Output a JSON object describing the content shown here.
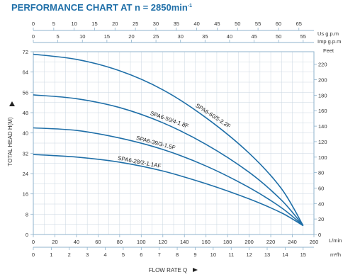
{
  "title": {
    "main": "PERFORMANCE CHART AT n = 2850min",
    "sup": "-1"
  },
  "units": {
    "us_gpm": "Us g.p.m",
    "imp_gpm": "Imp g.p.m",
    "feet": "Feet",
    "l_min": "L/min",
    "m3h": "m³/h"
  },
  "axis_titles": {
    "y": "TOTAL HEAD H(M)",
    "x": "FLOW RATE Q"
  },
  "colors": {
    "curve": "#1f6fa8",
    "title": "#1f6fa8",
    "grid": "#c9d6e0",
    "frame": "#8fb3cc"
  },
  "chart_data": {
    "type": "line",
    "title": "PERFORMANCE CHART AT n = 2850min⁻¹",
    "xlabel": "FLOW RATE Q",
    "ylabel": "TOTAL HEAD H(M)",
    "xlim": [
      0,
      260
    ],
    "ylim": [
      0,
      72
    ],
    "grid": true,
    "x_unit": "L/min",
    "y_unit": "m",
    "ticks": {
      "us_gpm": [
        "0",
        "5",
        "10",
        "15",
        "20",
        "25",
        "30",
        "35",
        "40",
        "45",
        "50",
        "55",
        "60",
        "65"
      ],
      "imp_gpm": [
        "0",
        "5",
        "10",
        "15",
        "20",
        "25",
        "30",
        "35",
        "40",
        "45",
        "50",
        "55"
      ],
      "head_m": [
        "0",
        "8",
        "16",
        "24",
        "32",
        "40",
        "48",
        "56",
        "64",
        "72"
      ],
      "feet": [
        "0",
        "20",
        "40",
        "60",
        "80",
        "100",
        "120",
        "140",
        "160",
        "180",
        "200",
        "220"
      ],
      "l_min": [
        "0",
        "20",
        "40",
        "60",
        "80",
        "100",
        "120",
        "140",
        "160",
        "180",
        "200",
        "220",
        "240",
        "260"
      ],
      "m3h": [
        "0",
        "1",
        "2",
        "3",
        "4",
        "5",
        "6",
        "7",
        "8",
        "9",
        "10",
        "11",
        "12",
        "13",
        "14",
        "15"
      ]
    },
    "series": [
      {
        "name": "SPA6-60/5-2.2F",
        "x": [
          0,
          40,
          80,
          120,
          160,
          200,
          230,
          250
        ],
        "y": [
          71,
          69,
          64.5,
          57,
          46,
          32,
          18,
          3.5
        ]
      },
      {
        "name": "SPA6-50/4-1.8F",
        "x": [
          0,
          40,
          80,
          120,
          160,
          200,
          230,
          250
        ],
        "y": [
          55,
          53.5,
          50,
          44,
          35.5,
          24.5,
          13.5,
          3.5
        ]
      },
      {
        "name": "SPA6-39/3-1.5F",
        "x": [
          0,
          40,
          80,
          120,
          160,
          200,
          230,
          250
        ],
        "y": [
          42,
          41,
          38,
          33.5,
          27,
          18.5,
          10.5,
          3.5
        ]
      },
      {
        "name": "SPA6-28/2-1.1AF",
        "x": [
          0,
          40,
          80,
          120,
          160,
          200,
          230,
          250
        ],
        "y": [
          31.5,
          30.5,
          28.5,
          25,
          20,
          14,
          8.5,
          3.5
        ]
      }
    ]
  }
}
